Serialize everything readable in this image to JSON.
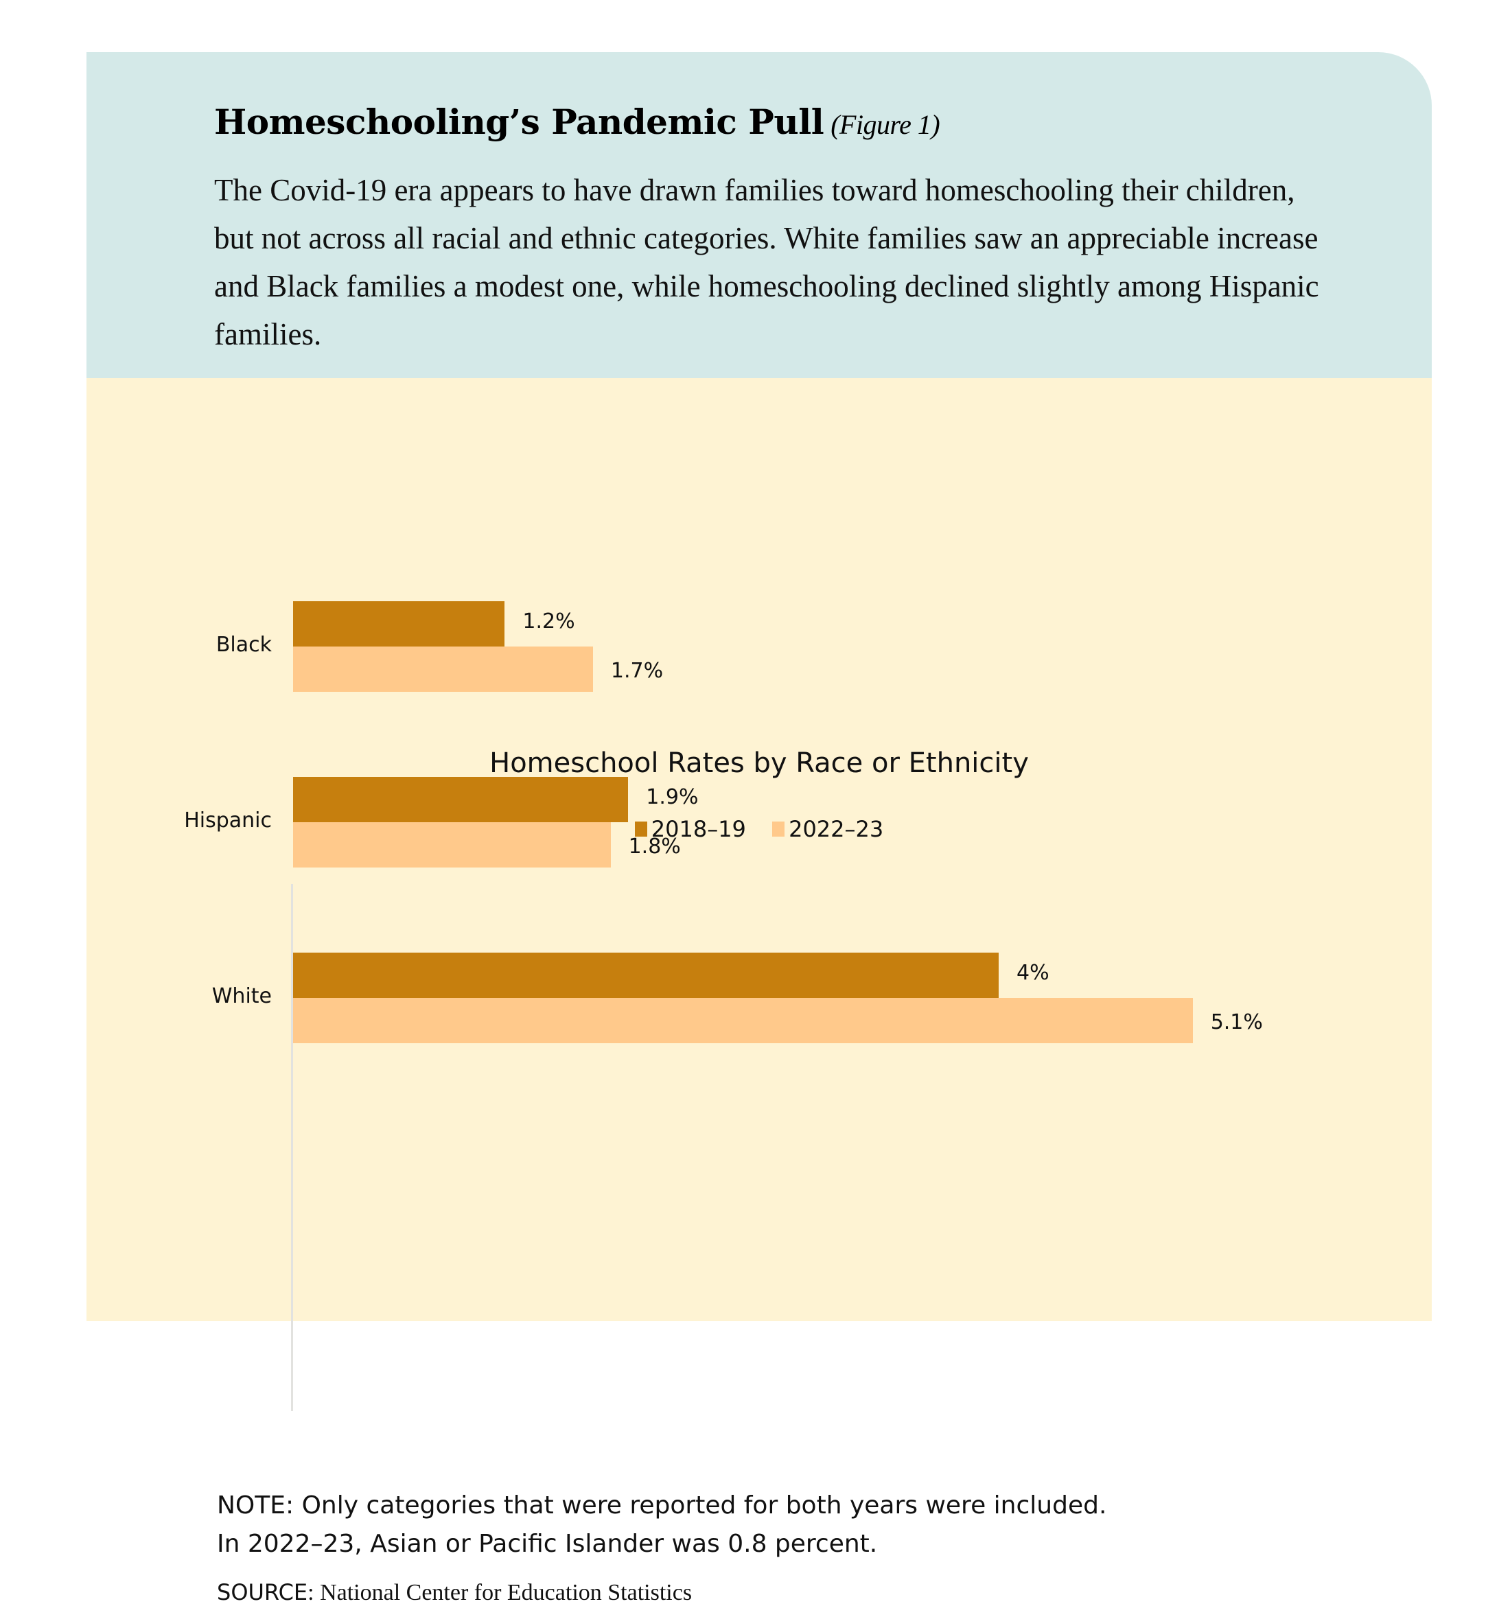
{
  "header": {
    "title": "Homeschooling’s Pandemic Pull",
    "figure_label": "(Figure 1)",
    "description": "The Covid-19 era appears to have drawn families toward homeschooling their children, but not across all racial and ethnic categories. White families saw an appreciable increase and Black families a modest one, while homeschooling declined slightly among Hispanic families."
  },
  "colors": {
    "header_bg": "#d4e9e8",
    "body_bg": "#fef3d3",
    "series_2018_19": "#c67f0e",
    "series_2022_23": "#ffc98b",
    "axis": "#e2e2df"
  },
  "chart_data": {
    "type": "bar",
    "orientation": "horizontal",
    "title": "Homeschool Rates by Race or Ethnicity",
    "categories": [
      "Black",
      "Hispanic",
      "White"
    ],
    "series": [
      {
        "name": "2018–19",
        "values": [
          1.2,
          1.9,
          4.0
        ],
        "labels": [
          "1.2%",
          "1.9%",
          "4%"
        ],
        "color": "#c67f0e"
      },
      {
        "name": "2022–23",
        "values": [
          1.7,
          1.8,
          5.1
        ],
        "labels": [
          "1.7%",
          "1.8%",
          "5.1%"
        ],
        "color": "#ffc98b"
      }
    ],
    "xlabel": "",
    "ylabel": "",
    "unit": "%",
    "grid": false,
    "legend_position": "top",
    "xlim": [
      0,
      5.5
    ]
  },
  "legend": [
    {
      "label": "2018–19"
    },
    {
      "label": "2022–23"
    }
  ],
  "footer": {
    "note_line1": "NOTE: Only categories that were reported for both years were included.",
    "note_line2": "In 2022–23, Asian or Pacific Islander was 0.8 percent.",
    "source_label": "SOURCE",
    "source_text": ": National Center for Education Statistics"
  }
}
